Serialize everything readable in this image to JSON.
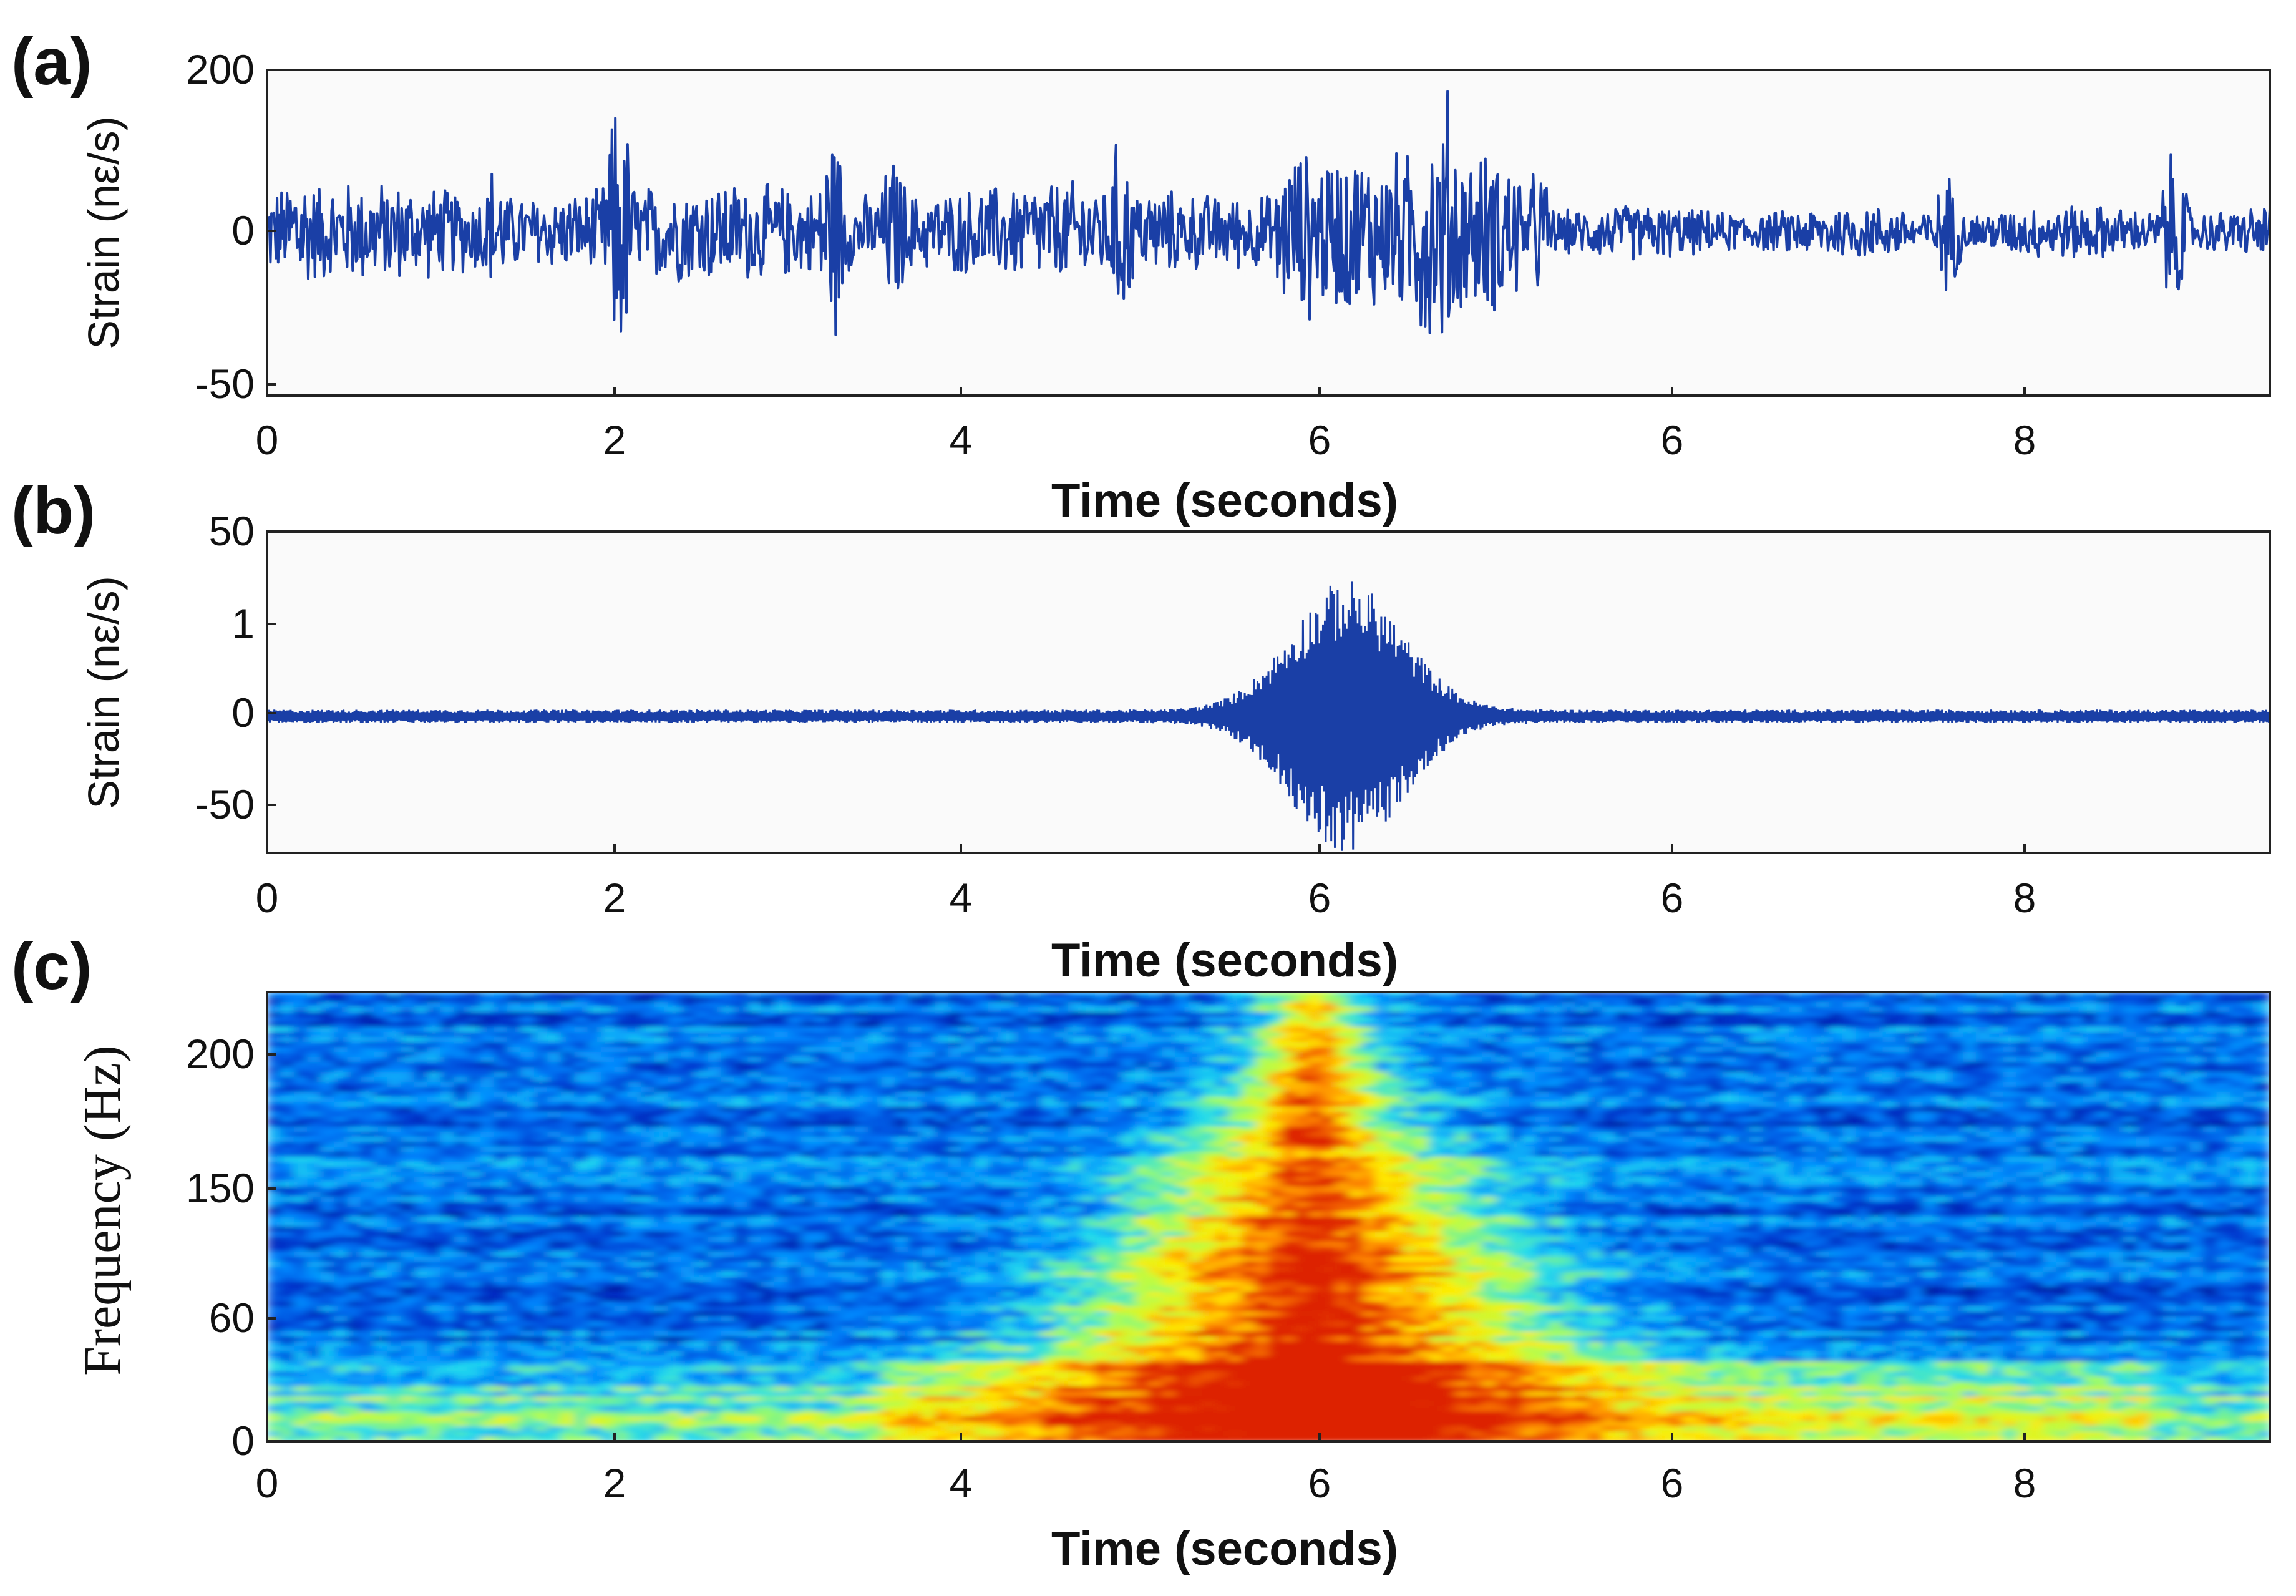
{
  "chart_data": [
    {
      "panel": "(a)",
      "type": "line",
      "xlabel": "Time (seconds)",
      "ylabel": "Strain (nε/s)",
      "xticks": [
        "0",
        "2",
        "4",
        "6",
        "6",
        "8"
      ],
      "yticks": [
        "200",
        "0",
        "-50"
      ],
      "xlim": [
        0,
        11.5
      ],
      "ylim": [
        -1.05,
        1.05
      ],
      "grid": false,
      "color": "#1a3fa6",
      "envelope_peaks": [
        {
          "t": 0.18,
          "amp": 0.55
        },
        {
          "t": 1.3,
          "amp": 0.48
        },
        {
          "t": 2.02,
          "amp": 0.95
        },
        {
          "t": 3.25,
          "amp": 0.75
        },
        {
          "t": 3.6,
          "amp": 0.55
        },
        {
          "t": 4.9,
          "amp": 0.65
        },
        {
          "t": 6.0,
          "amp": 0.62
        },
        {
          "t": 6.65,
          "amp": 0.88
        },
        {
          "t": 6.78,
          "amp": 1.0
        },
        {
          "t": 7.3,
          "amp": 0.45
        },
        {
          "t": 9.65,
          "amp": 0.4
        },
        {
          "t": 10.95,
          "amp": 0.55
        }
      ]
    },
    {
      "panel": "(b)",
      "type": "line",
      "xlabel": "Time (seconds)",
      "ylabel": "Strain (nε/s)",
      "xticks": [
        "0",
        "2",
        "4",
        "6",
        "6",
        "8"
      ],
      "yticks": [
        "50",
        "1",
        "0",
        "-50"
      ],
      "xlim": [
        0,
        11.5
      ],
      "ylim": [
        -1.05,
        1.05
      ],
      "grid": false,
      "color": "#1a3fa6",
      "burst": {
        "center_t": 6.2,
        "width_t": 0.45,
        "peak_amp": 0.97,
        "baseline_amp": 0.05
      }
    },
    {
      "panel": "(c)",
      "type": "heatmap",
      "xlabel": "Time (seconds)",
      "ylabel": "Frequency (Hz)",
      "xticks": [
        "0",
        "2",
        "4",
        "6",
        "6",
        "8"
      ],
      "yticks": [
        "200",
        "150",
        "60",
        "0"
      ],
      "xlim": [
        0,
        11.5
      ],
      "ylim": [
        0,
        230
      ],
      "colormap": [
        "#00007f",
        "#0033cc",
        "#0088ff",
        "#22ddee",
        "#aaff55",
        "#ffee00",
        "#ff8800",
        "#dd2200"
      ],
      "hotspot": {
        "center_t": 6.0,
        "center_f": 70,
        "note": "broadband energy burst extending to 230 Hz"
      },
      "low_band": {
        "f_max": 45
      }
    }
  ]
}
